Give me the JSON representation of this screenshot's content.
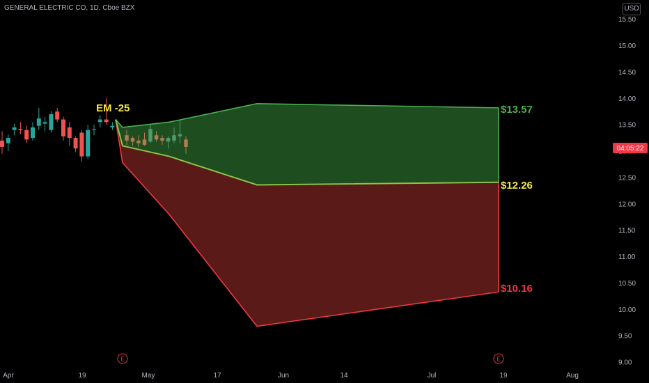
{
  "header": {
    "title": "GENERAL ELECTRIC CO, 1D, Cboe BZX",
    "currency": "USD"
  },
  "price_tag": "04:05:22",
  "earnings_marker": "E",
  "chart_data": {
    "type": "candlestick",
    "title": "GENERAL ELECTRIC CO, 1D, Cboe BZX",
    "xlabel": "",
    "ylabel": "",
    "ylim": [
      9.0,
      15.5
    ],
    "y_ticks": [
      "15.50",
      "15.00",
      "14.50",
      "14.00",
      "13.50",
      "13.00",
      "12.50",
      "12.00",
      "11.50",
      "11.00",
      "10.50",
      "10.00",
      "9.50",
      "9.00"
    ],
    "x_ticks": [
      "Apr",
      "19",
      "May",
      "17",
      "Jun",
      "14",
      "Jul",
      "19",
      "Aug"
    ],
    "grid": false,
    "candles": [
      {
        "o": 13.2,
        "h": 13.38,
        "l": 12.95,
        "c": 13.08
      },
      {
        "o": 13.15,
        "h": 13.32,
        "l": 13.0,
        "c": 13.25
      },
      {
        "o": 13.4,
        "h": 13.52,
        "l": 13.3,
        "c": 13.45
      },
      {
        "o": 13.42,
        "h": 13.55,
        "l": 13.32,
        "c": 13.4
      },
      {
        "o": 13.4,
        "h": 13.48,
        "l": 13.15,
        "c": 13.22
      },
      {
        "o": 13.25,
        "h": 13.55,
        "l": 13.2,
        "c": 13.45
      },
      {
        "o": 13.48,
        "h": 13.82,
        "l": 13.4,
        "c": 13.62
      },
      {
        "o": 13.52,
        "h": 13.65,
        "l": 13.38,
        "c": 13.55
      },
      {
        "o": 13.4,
        "h": 13.76,
        "l": 13.35,
        "c": 13.7
      },
      {
        "o": 13.75,
        "h": 13.82,
        "l": 13.55,
        "c": 13.6
      },
      {
        "o": 13.6,
        "h": 13.65,
        "l": 13.2,
        "c": 13.28
      },
      {
        "o": 13.45,
        "h": 13.55,
        "l": 13.1,
        "c": 13.25
      },
      {
        "o": 13.25,
        "h": 13.28,
        "l": 12.98,
        "c": 13.05
      },
      {
        "o": 13.35,
        "h": 13.4,
        "l": 12.8,
        "c": 12.9
      },
      {
        "o": 12.9,
        "h": 13.5,
        "l": 12.85,
        "c": 13.4
      },
      {
        "o": 13.42,
        "h": 13.5,
        "l": 13.3,
        "c": 13.42
      },
      {
        "o": 13.55,
        "h": 13.68,
        "l": 13.45,
        "c": 13.6
      },
      {
        "o": 13.6,
        "h": 14.0,
        "l": 13.5,
        "c": 13.55
      },
      {
        "o": 13.45,
        "h": 13.55,
        "l": 13.4,
        "c": 13.48
      }
    ],
    "future_candles": [
      {
        "o": 13.3,
        "h": 13.4,
        "l": 13.12,
        "c": 13.2
      },
      {
        "o": 13.25,
        "h": 13.28,
        "l": 13.1,
        "c": 13.18
      },
      {
        "o": 13.2,
        "h": 13.3,
        "l": 13.08,
        "c": 13.15
      },
      {
        "o": 13.22,
        "h": 13.35,
        "l": 13.1,
        "c": 13.12
      },
      {
        "o": 13.18,
        "h": 13.5,
        "l": 13.15,
        "c": 13.42
      },
      {
        "o": 13.3,
        "h": 13.38,
        "l": 13.18,
        "c": 13.22
      },
      {
        "o": 13.25,
        "h": 13.3,
        "l": 13.12,
        "c": 13.2
      },
      {
        "o": 13.18,
        "h": 13.28,
        "l": 13.05,
        "c": 13.25
      },
      {
        "o": 13.2,
        "h": 13.45,
        "l": 13.15,
        "c": 13.3
      },
      {
        "o": 13.28,
        "h": 13.58,
        "l": 13.15,
        "c": 13.32
      },
      {
        "o": 13.22,
        "h": 13.28,
        "l": 12.95,
        "c": 13.08
      }
    ],
    "expected_move_label": "EM -25",
    "upper_band": {
      "label": "$13.57",
      "points": [
        13.45,
        13.55,
        13.9,
        13.82
      ]
    },
    "middle_band": {
      "label": "$12.26",
      "points": [
        13.1,
        12.9,
        12.36,
        12.41
      ]
    },
    "lower_band": {
      "label": "$10.16",
      "points": [
        12.78,
        11.8,
        9.68,
        10.33
      ]
    },
    "colors": {
      "up": "#26a69a",
      "down": "#ef5350",
      "upper": "#4caf50",
      "lower": "#f23645",
      "mid": "#f5e642",
      "price_tag": "#f23645"
    }
  }
}
